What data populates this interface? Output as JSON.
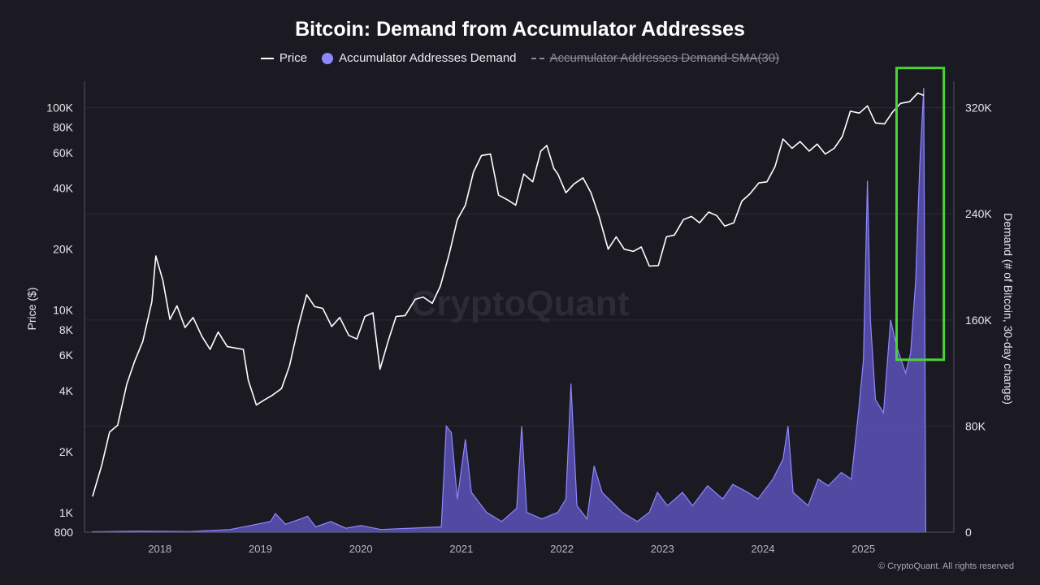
{
  "chart_data": {
    "type": "line",
    "title": "Bitcoin: Demand from Accumulator Addresses",
    "legend": {
      "placement": "top-center",
      "entries": [
        {
          "label": "Price",
          "style": "line",
          "color": "#ffffff"
        },
        {
          "label": "Accumulator Addresses Demand",
          "style": "area",
          "color": "#8f87ff"
        },
        {
          "label": "Accumulator Addresses Demand-SMA(30)",
          "style": "dashed",
          "color": "#8f8f9a",
          "disabled": true
        }
      ]
    },
    "y_left": {
      "label": "Price ($)",
      "scale": "log",
      "range": [
        800,
        135000
      ],
      "ticks": [
        800,
        1000,
        2000,
        4000,
        6000,
        8000,
        10000,
        20000,
        40000,
        60000,
        80000,
        100000
      ],
      "tick_labels": [
        "800",
        "1K",
        "2K",
        "4K",
        "6K",
        "8K",
        "10K",
        "20K",
        "40K",
        "60K",
        "80K",
        "100K"
      ]
    },
    "y_right": {
      "label": "Demand (# of Bitcoin, 30-day change)",
      "scale": "linear",
      "range": [
        0,
        340000
      ],
      "ticks": [
        0,
        80000,
        160000,
        240000,
        320000
      ],
      "tick_labels": [
        "0",
        "80K",
        "160K",
        "240K",
        "320K"
      ]
    },
    "x": {
      "range": [
        2017.25,
        2025.9
      ],
      "ticks": [
        2018,
        2019,
        2020,
        2021,
        2022,
        2023,
        2024,
        2025
      ],
      "tick_labels": [
        "2018",
        "2019",
        "2020",
        "2021",
        "2022",
        "2023",
        "2024",
        "2025"
      ]
    },
    "grid": "horizontal",
    "series": [
      {
        "name": "Price",
        "axis": "left",
        "points": [
          [
            2017.33,
            1200
          ],
          [
            2017.42,
            1700
          ],
          [
            2017.5,
            2500
          ],
          [
            2017.58,
            2700
          ],
          [
            2017.67,
            4300
          ],
          [
            2017.75,
            5600
          ],
          [
            2017.83,
            7000
          ],
          [
            2017.92,
            11000
          ],
          [
            2017.96,
            18500
          ],
          [
            2018.03,
            14000
          ],
          [
            2018.1,
            9000
          ],
          [
            2018.17,
            10500
          ],
          [
            2018.25,
            8200
          ],
          [
            2018.33,
            9200
          ],
          [
            2018.42,
            7400
          ],
          [
            2018.5,
            6400
          ],
          [
            2018.58,
            7800
          ],
          [
            2018.67,
            6600
          ],
          [
            2018.75,
            6500
          ],
          [
            2018.83,
            6400
          ],
          [
            2018.88,
            4500
          ],
          [
            2018.96,
            3400
          ],
          [
            2019.04,
            3600
          ],
          [
            2019.12,
            3800
          ],
          [
            2019.21,
            4100
          ],
          [
            2019.29,
            5300
          ],
          [
            2019.38,
            8400
          ],
          [
            2019.46,
            11900
          ],
          [
            2019.54,
            10400
          ],
          [
            2019.62,
            10200
          ],
          [
            2019.71,
            8300
          ],
          [
            2019.79,
            9200
          ],
          [
            2019.88,
            7500
          ],
          [
            2019.96,
            7200
          ],
          [
            2020.04,
            9300
          ],
          [
            2020.12,
            9700
          ],
          [
            2020.19,
            5100
          ],
          [
            2020.27,
            7000
          ],
          [
            2020.35,
            9300
          ],
          [
            2020.44,
            9400
          ],
          [
            2020.54,
            11300
          ],
          [
            2020.62,
            11600
          ],
          [
            2020.71,
            10800
          ],
          [
            2020.79,
            13100
          ],
          [
            2020.88,
            19000
          ],
          [
            2020.96,
            28000
          ],
          [
            2021.04,
            33000
          ],
          [
            2021.12,
            48000
          ],
          [
            2021.2,
            58000
          ],
          [
            2021.29,
            59000
          ],
          [
            2021.37,
            37000
          ],
          [
            2021.46,
            35000
          ],
          [
            2021.54,
            33000
          ],
          [
            2021.62,
            47000
          ],
          [
            2021.71,
            43000
          ],
          [
            2021.79,
            61000
          ],
          [
            2021.85,
            65000
          ],
          [
            2021.92,
            50000
          ],
          [
            2021.96,
            47000
          ],
          [
            2022.04,
            38000
          ],
          [
            2022.12,
            42000
          ],
          [
            2022.21,
            45000
          ],
          [
            2022.29,
            38000
          ],
          [
            2022.37,
            29000
          ],
          [
            2022.46,
            20000
          ],
          [
            2022.54,
            23000
          ],
          [
            2022.62,
            20000
          ],
          [
            2022.71,
            19500
          ],
          [
            2022.79,
            20500
          ],
          [
            2022.87,
            16500
          ],
          [
            2022.96,
            16600
          ],
          [
            2023.04,
            23000
          ],
          [
            2023.12,
            23500
          ],
          [
            2023.21,
            28000
          ],
          [
            2023.29,
            29000
          ],
          [
            2023.37,
            27000
          ],
          [
            2023.46,
            30500
          ],
          [
            2023.54,
            29300
          ],
          [
            2023.62,
            26000
          ],
          [
            2023.71,
            27000
          ],
          [
            2023.79,
            34500
          ],
          [
            2023.87,
            37500
          ],
          [
            2023.96,
            42500
          ],
          [
            2024.04,
            43000
          ],
          [
            2024.12,
            51000
          ],
          [
            2024.2,
            70000
          ],
          [
            2024.29,
            63000
          ],
          [
            2024.37,
            68000
          ],
          [
            2024.46,
            61000
          ],
          [
            2024.54,
            66000
          ],
          [
            2024.62,
            59000
          ],
          [
            2024.71,
            63000
          ],
          [
            2024.79,
            72000
          ],
          [
            2024.87,
            96000
          ],
          [
            2024.96,
            94000
          ],
          [
            2025.04,
            102000
          ],
          [
            2025.12,
            84000
          ],
          [
            2025.21,
            83000
          ],
          [
            2025.29,
            95000
          ],
          [
            2025.37,
            105000
          ],
          [
            2025.46,
            107000
          ],
          [
            2025.54,
            118000
          ],
          [
            2025.6,
            115000
          ]
        ]
      },
      {
        "name": "Accumulator Addresses Demand",
        "axis": "right",
        "points": [
          [
            2017.33,
            300
          ],
          [
            2017.8,
            800
          ],
          [
            2018.3,
            500
          ],
          [
            2018.7,
            2000
          ],
          [
            2018.9,
            5000
          ],
          [
            2019.1,
            8000
          ],
          [
            2019.15,
            14000
          ],
          [
            2019.25,
            6000
          ],
          [
            2019.4,
            10000
          ],
          [
            2019.47,
            12000
          ],
          [
            2019.55,
            4000
          ],
          [
            2019.7,
            8000
          ],
          [
            2019.85,
            3000
          ],
          [
            2020.0,
            5000
          ],
          [
            2020.2,
            2000
          ],
          [
            2020.5,
            3000
          ],
          [
            2020.8,
            4000
          ],
          [
            2020.85,
            80000
          ],
          [
            2020.9,
            75000
          ],
          [
            2020.96,
            25000
          ],
          [
            2021.04,
            70000
          ],
          [
            2021.1,
            30000
          ],
          [
            2021.25,
            15000
          ],
          [
            2021.4,
            8000
          ],
          [
            2021.55,
            18000
          ],
          [
            2021.6,
            80000
          ],
          [
            2021.65,
            15000
          ],
          [
            2021.8,
            10000
          ],
          [
            2021.96,
            15000
          ],
          [
            2022.04,
            25000
          ],
          [
            2022.09,
            112000
          ],
          [
            2022.15,
            20000
          ],
          [
            2022.25,
            10000
          ],
          [
            2022.32,
            50000
          ],
          [
            2022.4,
            30000
          ],
          [
            2022.6,
            15000
          ],
          [
            2022.75,
            8000
          ],
          [
            2022.87,
            15000
          ],
          [
            2022.95,
            30000
          ],
          [
            2023.05,
            20000
          ],
          [
            2023.2,
            30000
          ],
          [
            2023.3,
            20000
          ],
          [
            2023.45,
            35000
          ],
          [
            2023.6,
            25000
          ],
          [
            2023.7,
            36000
          ],
          [
            2023.85,
            30000
          ],
          [
            2023.95,
            25000
          ],
          [
            2024.1,
            40000
          ],
          [
            2024.2,
            55000
          ],
          [
            2024.25,
            80000
          ],
          [
            2024.3,
            30000
          ],
          [
            2024.45,
            20000
          ],
          [
            2024.55,
            40000
          ],
          [
            2024.65,
            35000
          ],
          [
            2024.78,
            45000
          ],
          [
            2024.88,
            40000
          ],
          [
            2024.95,
            90000
          ],
          [
            2025.0,
            130000
          ],
          [
            2025.04,
            265000
          ],
          [
            2025.07,
            160000
          ],
          [
            2025.12,
            100000
          ],
          [
            2025.2,
            90000
          ],
          [
            2025.27,
            160000
          ],
          [
            2025.33,
            140000
          ],
          [
            2025.42,
            120000
          ],
          [
            2025.47,
            135000
          ],
          [
            2025.52,
            190000
          ],
          [
            2025.56,
            275000
          ],
          [
            2025.6,
            335000
          ],
          [
            2025.62,
            0
          ]
        ]
      }
    ],
    "annotations": [
      {
        "type": "highlight-box",
        "color": "#4cd137",
        "x_range": [
          2025.33,
          2025.8
        ],
        "y_right_range": [
          130000,
          350000
        ]
      }
    ],
    "watermark": "CryptoQuant"
  },
  "footer": {
    "copyright": "© CryptoQuant. All rights reserved"
  }
}
